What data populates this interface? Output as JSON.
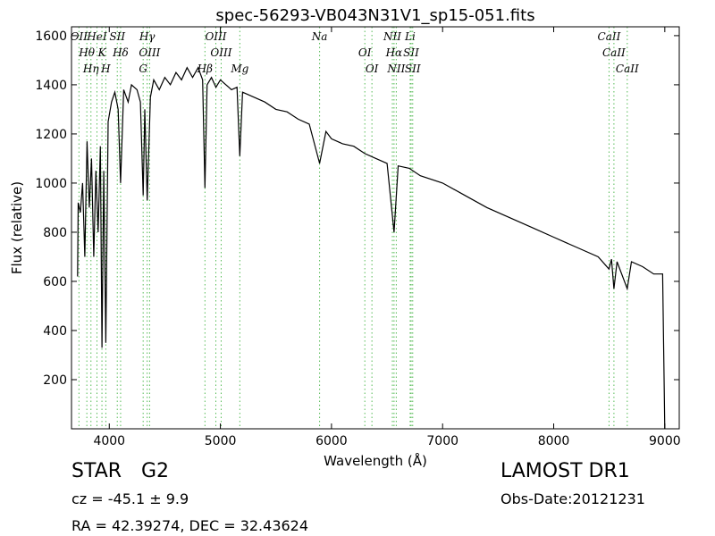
{
  "chart_data": {
    "type": "line",
    "title": "spec-56293-VB043N31V1_sp15-051.fits",
    "x_label": "Wavelength (Å)",
    "y_label": "Flux (relative)",
    "xlim": [
      3660,
      9130
    ],
    "ylim": [
      0,
      1636
    ],
    "xticks": [
      4000,
      5000,
      6000,
      7000,
      8000,
      9000
    ],
    "yticks": [
      200,
      400,
      600,
      800,
      1000,
      1200,
      1400,
      1600
    ],
    "color": "#000000",
    "line_color": "#55bb55",
    "series": [
      {
        "name": "spectrum",
        "x": [
          3715,
          3720,
          3740,
          3760,
          3780,
          3800,
          3820,
          3840,
          3860,
          3880,
          3900,
          3920,
          3934,
          3950,
          3969,
          3990,
          4020,
          4050,
          4080,
          4102,
          4130,
          4170,
          4200,
          4250,
          4280,
          4305,
          4320,
          4341,
          4370,
          4400,
          4450,
          4500,
          4550,
          4600,
          4650,
          4700,
          4750,
          4800,
          4840,
          4861,
          4880,
          4920,
          4960,
          5000,
          5050,
          5100,
          5150,
          5175,
          5200,
          5300,
          5400,
          5500,
          5600,
          5700,
          5800,
          5893,
          5950,
          6000,
          6100,
          6200,
          6300,
          6400,
          6500,
          6563,
          6600,
          6700,
          6800,
          7000,
          7200,
          7400,
          7600,
          7800,
          8000,
          8200,
          8400,
          8498,
          8520,
          8542,
          8570,
          8662,
          8700,
          8800,
          8900,
          8980,
          9000
        ],
        "values": [
          620,
          920,
          880,
          1000,
          700,
          1170,
          900,
          1100,
          700,
          1050,
          800,
          1150,
          330,
          1050,
          350,
          1250,
          1330,
          1370,
          1300,
          1000,
          1380,
          1330,
          1400,
          1380,
          1330,
          950,
          1300,
          930,
          1350,
          1420,
          1380,
          1430,
          1400,
          1450,
          1420,
          1470,
          1430,
          1470,
          1420,
          980,
          1400,
          1430,
          1390,
          1420,
          1400,
          1380,
          1390,
          1110,
          1370,
          1350,
          1330,
          1300,
          1290,
          1260,
          1240,
          1080,
          1210,
          1180,
          1160,
          1150,
          1120,
          1100,
          1080,
          800,
          1070,
          1060,
          1030,
          1000,
          950,
          900,
          860,
          820,
          780,
          740,
          700,
          650,
          690,
          570,
          680,
          570,
          680,
          660,
          630,
          630,
          0
        ]
      }
    ],
    "lines": {
      "wavelengths": [
        3727,
        3798,
        3835,
        3889,
        3934,
        3969,
        4072,
        4102,
        4305,
        4341,
        4363,
        4861,
        4959,
        5007,
        5175,
        5893,
        6300,
        6364,
        6548,
        6563,
        6583,
        6708,
        6717,
        6731,
        8498,
        8542,
        8662
      ],
      "labels": [
        "OII",
        "Hθ",
        "Hη",
        "HeI",
        "K",
        "H",
        "SII",
        "Hδ",
        "G",
        "Hγ",
        "OIII",
        "Hβ",
        "OIII",
        "OIII",
        "Mg",
        "Na",
        "OI",
        "OI",
        "NII",
        "Hα",
        "NII",
        "Li",
        "SII",
        "SII",
        "CaII",
        "CaII",
        "CaII"
      ]
    },
    "class": "STAR",
    "subclass": "G2",
    "redshift": "cz = -45.1 ± 9.9",
    "coords": "RA = 42.39274, DEC = 32.43624",
    "survey": "LAMOST DR1",
    "obs_date": "Obs-Date:20121231"
  }
}
